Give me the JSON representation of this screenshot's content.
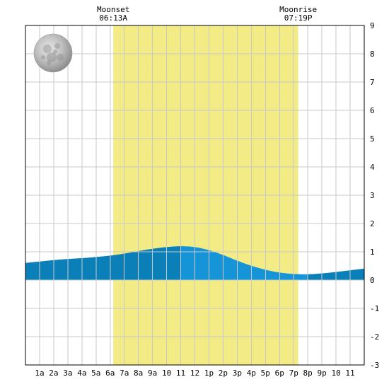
{
  "chart_data": {
    "type": "area",
    "title": "",
    "xlabel": "",
    "ylabel": "",
    "xlim": [
      0,
      24
    ],
    "ylim": [
      -3,
      9
    ],
    "grid": true,
    "x_tick_labels": [
      "1a",
      "2a",
      "3a",
      "4a",
      "5a",
      "6a",
      "7a",
      "8a",
      "9a",
      "10",
      "11",
      "12",
      "1p",
      "2p",
      "3p",
      "4p",
      "5p",
      "6p",
      "7p",
      "8p",
      "9p",
      "10",
      "11"
    ],
    "y_ticks": [
      9,
      8,
      7,
      6,
      5,
      4,
      3,
      2,
      1,
      0,
      -1,
      -2,
      -3
    ],
    "events": [
      {
        "label": "Moonset",
        "time": "06:13A",
        "hour": 6.22
      },
      {
        "label": "Moonrise",
        "time": "07:19P",
        "hour": 19.32
      }
    ],
    "moon_visible_interval": [
      6.22,
      19.32
    ],
    "moon_phase_icon": "full-moon-icon",
    "series": [
      {
        "x": [
          0,
          1,
          2,
          3,
          4,
          5,
          6,
          7,
          8,
          9,
          10,
          11,
          12,
          13,
          14,
          15,
          16,
          17,
          18,
          19,
          20,
          21,
          22,
          23,
          24
        ],
        "y": [
          0.6,
          0.65,
          0.7,
          0.74,
          0.77,
          0.81,
          0.86,
          0.93,
          1.02,
          1.1,
          1.16,
          1.19,
          1.16,
          1.05,
          0.88,
          0.68,
          0.5,
          0.36,
          0.26,
          0.21,
          0.2,
          0.23,
          0.28,
          0.34,
          0.4
        ]
      }
    ],
    "colors": {
      "moon_band": "#f2eb86",
      "tide_rising": "#0a7fb8",
      "tide_falling": "#1594d8",
      "grid": "#c8c8c8",
      "background": "#ffffff"
    }
  }
}
